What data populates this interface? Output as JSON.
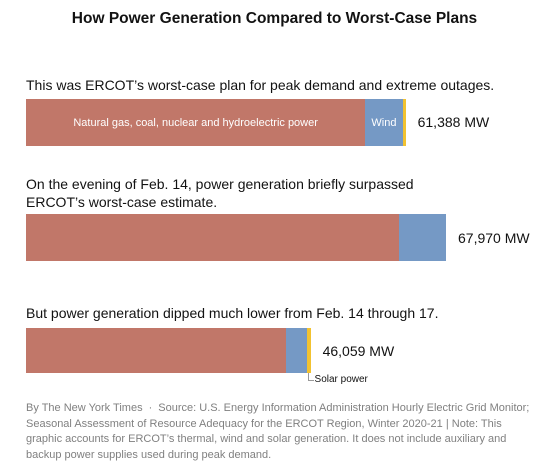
{
  "colors": {
    "natural_gas_coal_nuclear_hydro": "#c17769",
    "wind": "#7599c5",
    "solar": "#f2c230"
  },
  "chart_data": {
    "type": "bar",
    "orientation": "horizontal",
    "stacked": true,
    "title": "How Power Generation Compared to Worst-Case Plans",
    "unit": "MW",
    "series_labels": {
      "thermal": "Natural gas, coal, nuclear and hydroelectric power",
      "wind": "Wind",
      "solar": "Solar power"
    },
    "bars": [
      {
        "label": "This was ERCOT’s worst-case plan for peak demand and extreme outages.",
        "total_label": "61,388 MW",
        "total": 61388,
        "thermal": 54900,
        "wind": 6050,
        "solar": 438
      },
      {
        "label": "On the evening of Feb. 14, power generation briefly surpassed ERCOT’s worst-case estimate.",
        "total_label": "67,970 MW",
        "total": 67970,
        "thermal": 60400,
        "wind": 7570,
        "solar": 0
      },
      {
        "label": "But power generation dipped much lower from Feb. 14 through 17.",
        "total_label": "46,059 MW",
        "total": 46059,
        "thermal": 42000,
        "wind": 3400,
        "solar": 659
      }
    ]
  },
  "footer": {
    "byline": "By The New York Times",
    "separator": "·",
    "source": "Source: U.S. Energy Information Administration Hourly Electric Grid Monitor; Seasonal Assessment of Resource Adequacy for the ERCOT Region, Winter 2020-21 | Note: This graphic accounts for ERCOT’s thermal, wind and solar generation. It does not include auxiliary and backup power supplies used during peak demand."
  }
}
